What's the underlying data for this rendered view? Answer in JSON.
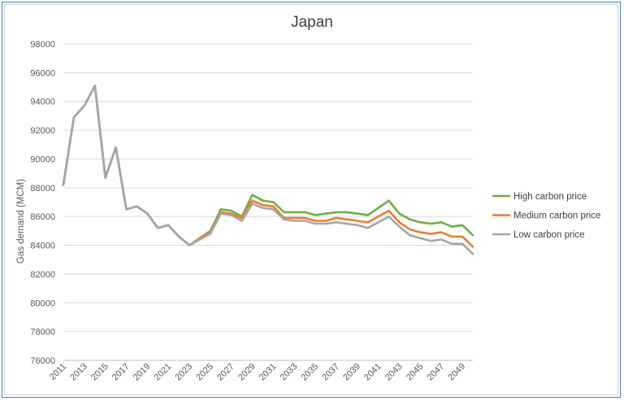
{
  "chart_data": {
    "type": "line",
    "title": "Japan",
    "xlabel": "",
    "ylabel": "Gas demand (MCM)",
    "ylim": [
      76000,
      98000
    ],
    "y_ticks": [
      76000,
      78000,
      80000,
      82000,
      84000,
      86000,
      88000,
      90000,
      92000,
      94000,
      96000,
      98000
    ],
    "x_tick_labels": [
      "2011",
      "2013",
      "2015",
      "2017",
      "2019",
      "2021",
      "2023",
      "2025",
      "2027",
      "2029",
      "2031",
      "2033",
      "2035",
      "2037",
      "2039",
      "2041",
      "2043",
      "2045",
      "2047",
      "2049"
    ],
    "legend_position": "right",
    "grid": "horizontal",
    "x": [
      2011,
      2012,
      2013,
      2014,
      2015,
      2016,
      2017,
      2018,
      2019,
      2020,
      2021,
      2022,
      2023,
      2024,
      2025,
      2026,
      2027,
      2028,
      2029,
      2030,
      2031,
      2032,
      2033,
      2034,
      2035,
      2036,
      2037,
      2038,
      2039,
      2040,
      2041,
      2042,
      2043,
      2044,
      2045,
      2046,
      2047,
      2048,
      2049,
      2050
    ],
    "series": [
      {
        "name": "High carbon price",
        "color": "#70ad47",
        "values": [
          88200,
          92900,
          93700,
          95100,
          88700,
          90800,
          86500,
          86700,
          86200,
          85200,
          85400,
          84600,
          84000,
          84500,
          85000,
          86500,
          86400,
          86000,
          87500,
          87100,
          87000,
          86300,
          86300,
          86300,
          86100,
          86200,
          86300,
          86300,
          86200,
          86100,
          86600,
          87100,
          86200,
          85800,
          85600,
          85500,
          85600,
          85300,
          85400,
          84700
        ]
      },
      {
        "name": "Medium carbon price",
        "color": "#ed7d31",
        "values": [
          88200,
          92900,
          93700,
          95100,
          88700,
          90800,
          86500,
          86700,
          86200,
          85200,
          85400,
          84600,
          84000,
          84500,
          84900,
          86300,
          86200,
          85900,
          87100,
          86800,
          86700,
          85900,
          85900,
          85900,
          85700,
          85700,
          85900,
          85800,
          85700,
          85600,
          86000,
          86400,
          85600,
          85100,
          84900,
          84800,
          84900,
          84600,
          84600,
          83900
        ]
      },
      {
        "name": "Low carbon price",
        "color": "#a5a5a5",
        "values": [
          88200,
          92900,
          93700,
          95100,
          88700,
          90800,
          86500,
          86700,
          86200,
          85200,
          85400,
          84600,
          84000,
          84400,
          84800,
          86200,
          86100,
          85700,
          86900,
          86600,
          86500,
          85800,
          85700,
          85700,
          85500,
          85500,
          85600,
          85500,
          85400,
          85200,
          85600,
          86000,
          85300,
          84700,
          84500,
          84300,
          84400,
          84100,
          84100,
          83400
        ]
      }
    ]
  }
}
